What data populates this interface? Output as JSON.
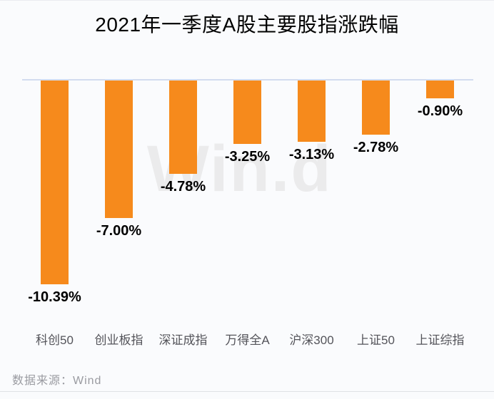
{
  "title": "2021年一季度A股主要股指涨跌幅",
  "source": "数据来源：Wind",
  "watermark": "Win.d",
  "colors": {
    "bar": "#F68A1C",
    "axis_line": "#d2dcef",
    "value_label": "#000000",
    "category_label": "#54545a",
    "source_text": "#9a9ba1",
    "watermark": "#ebebec",
    "background": "#fafbfd"
  },
  "chart_data": {
    "type": "bar",
    "title": "2021年一季度A股主要股指涨跌幅",
    "categories": [
      "科创50",
      "创业板指",
      "深证成指",
      "万得全A",
      "沪深300",
      "上证50",
      "上证综指"
    ],
    "values": [
      -10.39,
      -7.0,
      -4.78,
      -3.25,
      -3.13,
      -2.78,
      -0.9
    ],
    "data_labels": [
      "-10.39%",
      "-7.00%",
      "-4.78%",
      "-3.25%",
      "-3.13%",
      "-2.78%",
      "-0.90%"
    ],
    "unit": "%",
    "baseline": 0,
    "ylim": [
      -11.5,
      0
    ],
    "grid": false,
    "legend": false,
    "bar_color": "#F68A1C",
    "orientation": "vertical-negative"
  }
}
